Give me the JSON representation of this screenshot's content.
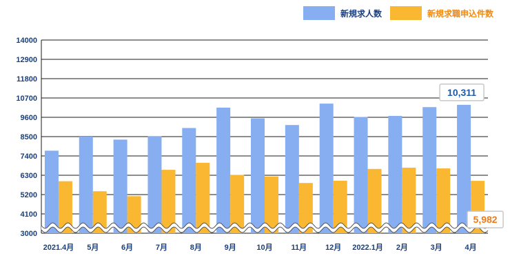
{
  "colors": {
    "series1": "#86aef0",
    "series2": "#f9b732",
    "axis_text": "#1a3f7a",
    "grid": "#1a1a1a",
    "callout1_text": "#1f5aa8",
    "callout2_text": "#ef7a1a"
  },
  "legend": [
    {
      "label": "新規求人数",
      "color": "#86aef0"
    },
    {
      "label": "新規求職申込件数",
      "color": "#f9b732"
    }
  ],
  "callouts": [
    {
      "text": "10,311",
      "series": 0,
      "index": 12
    },
    {
      "text": "5,982",
      "series": 1,
      "index": 12
    }
  ],
  "chart_data": {
    "type": "bar",
    "categories": [
      "2021.4月",
      "5月",
      "6月",
      "7月",
      "8月",
      "9月",
      "10月",
      "11月",
      "12月",
      "2022.1月",
      "2月",
      "3月",
      "4月"
    ],
    "series": [
      {
        "name": "新規求人数",
        "values": [
          7700,
          8500,
          8330,
          8530,
          8990,
          10150,
          9540,
          9160,
          10380,
          9620,
          9680,
          10180,
          10311
        ]
      },
      {
        "name": "新規求職申込件数",
        "values": [
          5960,
          5390,
          5110,
          6610,
          7010,
          6320,
          6230,
          5860,
          5990,
          6660,
          6730,
          6690,
          5982
        ]
      }
    ],
    "yticks": [
      3000,
      4100,
      5200,
      6300,
      7400,
      8500,
      9600,
      10700,
      11800,
      12900,
      14000
    ],
    "ylim": [
      3000,
      14000
    ],
    "axis_break": true,
    "grid": true,
    "legend_position": "top-right"
  }
}
